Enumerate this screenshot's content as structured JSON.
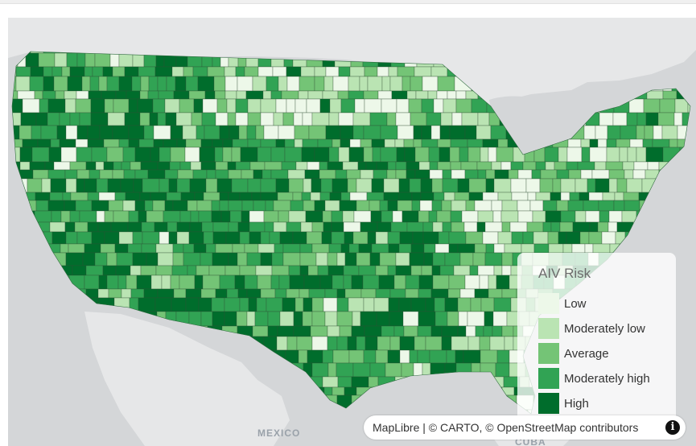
{
  "map": {
    "basemap_labels": {
      "mexico": "MEXICO",
      "cuba": "CUBA"
    }
  },
  "legend": {
    "title": "AIV Risk",
    "items": [
      {
        "label": "Low",
        "color": "#edf8e9"
      },
      {
        "label": "Moderately low",
        "color": "#bae4b3"
      },
      {
        "label": "Average",
        "color": "#74c476"
      },
      {
        "label": "Moderately high",
        "color": "#31a354"
      },
      {
        "label": "High",
        "color": "#006d2c"
      }
    ]
  },
  "attribution": {
    "text": "MapLibre | © CARTO, © OpenStreetMap contributors",
    "info_icon": "info-icon"
  },
  "colors": {
    "water": "#d4d6d8",
    "land": "#e6e7e8"
  }
}
